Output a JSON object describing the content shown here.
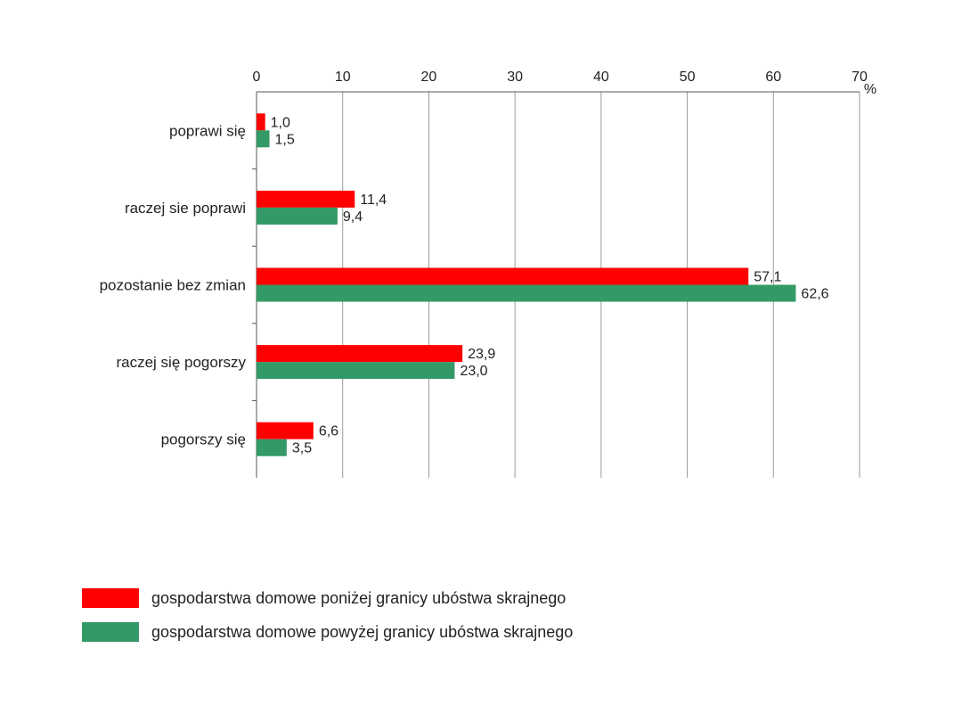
{
  "chart_data": {
    "type": "bar",
    "orientation": "horizontal",
    "categories": [
      "poprawi się",
      "raczej sie poprawi",
      "pozostanie bez zmian",
      "raczej się pogorszy",
      "pogorszy się"
    ],
    "series": [
      {
        "name": "gospodarstwa domowe poniżej granicy ubóstwa skrajnego",
        "color": "#ff0000",
        "values": [
          1.0,
          11.4,
          57.1,
          23.9,
          6.6
        ],
        "labels": [
          "1,0",
          "11,4",
          "57,1",
          "23,9",
          "6,6"
        ]
      },
      {
        "name": "gospodarstwa domowe powyżej granicy ubóstwa skrajnego",
        "color": "#339966",
        "values": [
          1.5,
          9.4,
          62.6,
          23.0,
          3.5
        ],
        "labels": [
          "1,5",
          "9,4",
          "62,6",
          "23,0",
          "3,5"
        ]
      }
    ],
    "xlim": [
      0,
      70
    ],
    "xticks": [
      0,
      10,
      20,
      30,
      40,
      50,
      60,
      70
    ],
    "xunit": "%",
    "axis_position": "top",
    "grid": true,
    "legend_position": "bottom-left"
  }
}
